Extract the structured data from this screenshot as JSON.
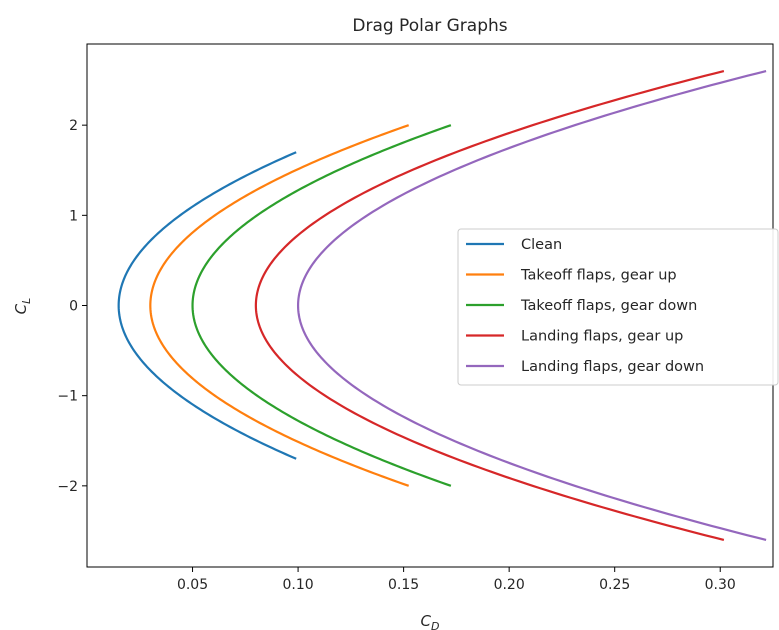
{
  "chart_data": {
    "type": "line",
    "title": "Drag Polar Graphs",
    "xlabel": {
      "main": "C",
      "sub": "D"
    },
    "ylabel": {
      "main": "C",
      "sub": "L"
    },
    "xlim": [
      0.0,
      0.325
    ],
    "ylim": [
      -2.9,
      2.9
    ],
    "xticks": [
      0.05,
      0.1,
      0.15,
      0.2,
      0.25,
      0.3
    ],
    "xtick_labels": [
      "0.05",
      "0.10",
      "0.15",
      "0.20",
      "0.25",
      "0.30"
    ],
    "yticks": [
      -2,
      -1,
      0,
      1,
      2
    ],
    "ytick_labels": [
      "−2",
      "−1",
      "0",
      "1",
      "2"
    ],
    "grid": false,
    "legend_position": "center-right",
    "series": [
      {
        "name": "Clean",
        "color": "#1f77b4",
        "cd0": 0.015,
        "k": 0.0291,
        "cl_range": [
          -1.7,
          1.7
        ]
      },
      {
        "name": "Takeoff flaps, gear up",
        "color": "#ff7f0e",
        "cd0": 0.03,
        "k": 0.0306,
        "cl_range": [
          -2.0,
          2.0
        ]
      },
      {
        "name": "Takeoff flaps, gear down",
        "color": "#2ca02c",
        "cd0": 0.05,
        "k": 0.0306,
        "cl_range": [
          -2.0,
          2.0
        ]
      },
      {
        "name": "Landing flaps, gear up",
        "color": "#d62728",
        "cd0": 0.08,
        "k": 0.0328,
        "cl_range": [
          -2.6,
          2.6
        ]
      },
      {
        "name": "Landing flaps, gear down",
        "color": "#9467bd",
        "cd0": 0.1,
        "k": 0.0328,
        "cl_range": [
          -2.6,
          2.6
        ]
      }
    ]
  }
}
